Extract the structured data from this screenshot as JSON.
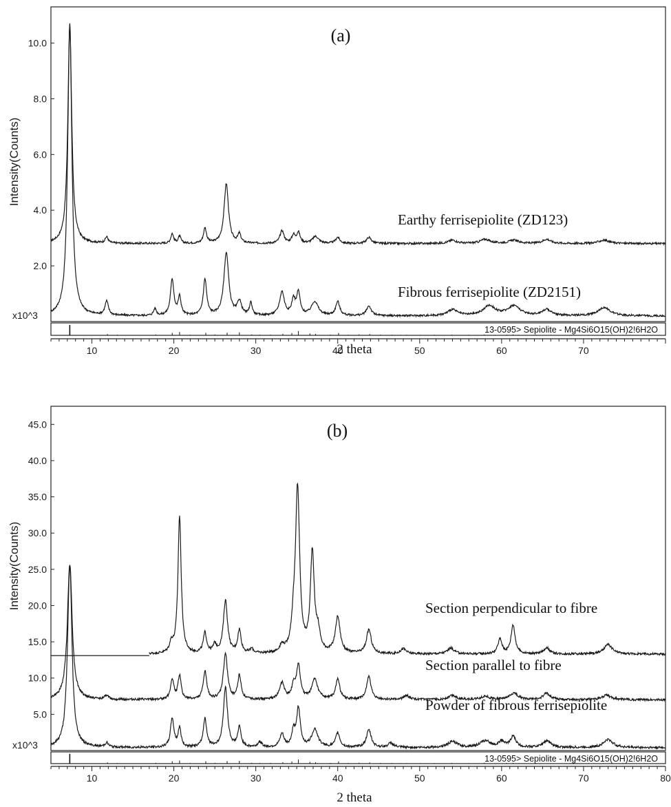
{
  "chart_data": [
    {
      "type": "line",
      "panel_label": "(a)",
      "ylabel": "Intensity(Counts)",
      "scale_label": "x10^3",
      "xlabel": "2 theta",
      "xlim": [
        5,
        80
      ],
      "ylim": [
        0,
        11
      ],
      "yticks": [
        "2.0",
        "4.0",
        "6.0",
        "8.0",
        "10.0"
      ],
      "xticks": [
        "10",
        "20",
        "30",
        "40",
        "50",
        "60",
        "70"
      ],
      "series": [
        {
          "name": "Earthy ferrisepiolite (ZD123)",
          "baseline": 2.8,
          "peaks": [
            [
              7.3,
              7.9,
              0.28
            ],
            [
              11.8,
              0.22,
              0.22
            ],
            [
              19.8,
              0.35,
              0.2
            ],
            [
              20.7,
              0.25,
              0.2
            ],
            [
              23.8,
              0.55,
              0.22
            ],
            [
              26.4,
              2.15,
              0.32
            ],
            [
              28.0,
              0.32,
              0.22
            ],
            [
              33.2,
              0.45,
              0.3
            ],
            [
              34.6,
              0.28,
              0.25
            ],
            [
              35.2,
              0.38,
              0.25
            ],
            [
              37.3,
              0.25,
              0.45
            ],
            [
              40.0,
              0.22,
              0.3
            ],
            [
              43.8,
              0.22,
              0.35
            ],
            [
              54.0,
              0.12,
              0.6
            ],
            [
              58.0,
              0.15,
              0.7
            ],
            [
              61.5,
              0.12,
              0.7
            ],
            [
              65.5,
              0.15,
              0.6
            ],
            [
              72.5,
              0.12,
              0.8
            ]
          ]
        },
        {
          "name": "Fibrous ferrisepiolite (ZD2151)",
          "baseline": 0.2,
          "peaks": [
            [
              7.3,
              10.5,
              0.3
            ],
            [
              11.8,
              0.5,
              0.25
            ],
            [
              17.7,
              0.25,
              0.2
            ],
            [
              19.8,
              1.3,
              0.25
            ],
            [
              20.7,
              0.65,
              0.22
            ],
            [
              23.8,
              1.3,
              0.25
            ],
            [
              26.4,
              2.25,
              0.35
            ],
            [
              28.0,
              0.5,
              0.3
            ],
            [
              29.4,
              0.45,
              0.2
            ],
            [
              33.2,
              0.85,
              0.35
            ],
            [
              34.6,
              0.55,
              0.25
            ],
            [
              35.2,
              0.8,
              0.25
            ],
            [
              37.2,
              0.5,
              0.5
            ],
            [
              40.0,
              0.5,
              0.3
            ],
            [
              43.8,
              0.35,
              0.35
            ],
            [
              54.0,
              0.22,
              0.7
            ],
            [
              58.5,
              0.35,
              0.9
            ],
            [
              61.5,
              0.35,
              0.9
            ],
            [
              65.5,
              0.22,
              0.7
            ],
            [
              72.5,
              0.3,
              0.9
            ]
          ]
        }
      ],
      "reference": {
        "label": "13-0595> Sepiolite - Mg4Si6O15(OH)2!6H2O",
        "lines": [
          [
            7.3,
            1.0
          ],
          [
            11.9,
            0.12
          ],
          [
            13.1,
            0.06
          ],
          [
            17.8,
            0.08
          ],
          [
            19.8,
            0.24
          ],
          [
            20.7,
            0.32
          ],
          [
            22.0,
            0.06
          ],
          [
            23.9,
            0.24
          ],
          [
            25.0,
            0.08
          ],
          [
            26.5,
            0.26
          ],
          [
            28.0,
            0.28
          ],
          [
            29.5,
            0.08
          ],
          [
            30.5,
            0.06
          ],
          [
            31.8,
            0.07
          ],
          [
            33.3,
            0.14
          ],
          [
            34.4,
            0.22
          ],
          [
            35.2,
            0.42
          ],
          [
            36.6,
            0.18
          ],
          [
            37.3,
            0.14
          ],
          [
            39.1,
            0.07
          ],
          [
            40.1,
            0.22
          ],
          [
            41.3,
            0.06
          ],
          [
            42.6,
            0.09
          ],
          [
            43.9,
            0.12
          ],
          [
            45.2,
            0.06
          ],
          [
            46.6,
            0.06
          ],
          [
            47.7,
            0.05
          ],
          [
            48.4,
            0.05
          ],
          [
            50.1,
            0.05
          ],
          [
            51.8,
            0.05
          ],
          [
            53.9,
            0.07
          ],
          [
            56.0,
            0.05
          ],
          [
            57.9,
            0.08
          ],
          [
            59.2,
            0.05
          ],
          [
            60.6,
            0.07
          ],
          [
            61.4,
            0.08
          ],
          [
            62.1,
            0.05
          ],
          [
            64.2,
            0.05
          ],
          [
            66.0,
            0.05
          ],
          [
            68.4,
            0.05
          ],
          [
            70.6,
            0.05
          ],
          [
            72.4,
            0.05
          ],
          [
            74.8,
            0.05
          ],
          [
            77.4,
            0.05
          ]
        ]
      }
    },
    {
      "type": "line",
      "panel_label": "(b)",
      "ylabel": "Intensity(Counts)",
      "scale_label": "x10^3",
      "xlabel": "2 theta",
      "xlim": [
        5,
        80
      ],
      "ylim": [
        0,
        47
      ],
      "yticks": [
        "5.0",
        "10.0",
        "15.0",
        "20.0",
        "25.0",
        "30.0",
        "35.0",
        "40.0",
        "45.0"
      ],
      "xticks": [
        "10",
        "20",
        "30",
        "40",
        "50",
        "60",
        "70",
        "80"
      ],
      "series": [
        {
          "name": "Section perpendicular to fibre",
          "baseline": 13.3,
          "start_x": 17,
          "peaks": [
            [
              19.7,
              1.3,
              0.25
            ],
            [
              20.7,
              19.0,
              0.24
            ],
            [
              23.8,
              2.8,
              0.25
            ],
            [
              25.0,
              1.1,
              0.25
            ],
            [
              26.3,
              7.3,
              0.3
            ],
            [
              28.0,
              3.2,
              0.25
            ],
            [
              29.5,
              0.6,
              0.25
            ],
            [
              33.2,
              0.9,
              0.3
            ],
            [
              34.6,
              3.0,
              0.3
            ],
            [
              35.1,
              22.5,
              0.3
            ],
            [
              36.9,
              13.8,
              0.28
            ],
            [
              37.6,
              2.5,
              0.3
            ],
            [
              40.0,
              5.0,
              0.35
            ],
            [
              43.8,
              3.3,
              0.35
            ],
            [
              48.0,
              0.7,
              0.4
            ],
            [
              53.8,
              0.8,
              0.5
            ],
            [
              59.8,
              2.0,
              0.3
            ],
            [
              61.4,
              4.0,
              0.3
            ],
            [
              65.5,
              0.9,
              0.4
            ],
            [
              73.0,
              1.3,
              0.6
            ]
          ],
          "flat_segment": [
            5,
            17,
            13.1
          ]
        },
        {
          "name": "Section parallel to fibre",
          "baseline": 7.0,
          "peaks": [
            [
              7.3,
              18.8,
              0.35
            ],
            [
              11.8,
              0.6,
              0.25
            ],
            [
              19.8,
              2.7,
              0.25
            ],
            [
              20.7,
              3.3,
              0.22
            ],
            [
              23.8,
              3.9,
              0.25
            ],
            [
              26.3,
              6.3,
              0.3
            ],
            [
              28.0,
              3.3,
              0.25
            ],
            [
              33.2,
              2.3,
              0.35
            ],
            [
              34.6,
              1.8,
              0.25
            ],
            [
              35.2,
              4.6,
              0.28
            ],
            [
              37.2,
              2.7,
              0.45
            ],
            [
              40.0,
              2.8,
              0.3
            ],
            [
              43.8,
              3.3,
              0.3
            ],
            [
              48.4,
              0.6,
              0.4
            ],
            [
              54.0,
              0.6,
              0.6
            ],
            [
              58.0,
              0.5,
              0.6
            ],
            [
              61.5,
              0.9,
              0.6
            ],
            [
              65.5,
              0.9,
              0.5
            ],
            [
              72.8,
              0.6,
              0.7
            ]
          ]
        },
        {
          "name": "Powder of fibrous ferrisepiolite",
          "baseline": 0.4,
          "peaks": [
            [
              7.3,
              25.3,
              0.32
            ],
            [
              11.8,
              0.6,
              0.25
            ],
            [
              19.8,
              4.0,
              0.25
            ],
            [
              20.7,
              2.6,
              0.22
            ],
            [
              23.8,
              4.0,
              0.25
            ],
            [
              26.3,
              8.2,
              0.3
            ],
            [
              28.0,
              2.7,
              0.25
            ],
            [
              30.5,
              0.7,
              0.3
            ],
            [
              33.2,
              1.8,
              0.3
            ],
            [
              34.6,
              2.0,
              0.25
            ],
            [
              35.2,
              5.2,
              0.28
            ],
            [
              37.2,
              2.5,
              0.45
            ],
            [
              40.0,
              2.0,
              0.3
            ],
            [
              43.8,
              2.4,
              0.35
            ],
            [
              46.5,
              0.6,
              0.4
            ],
            [
              54.0,
              0.8,
              0.7
            ],
            [
              58.0,
              0.9,
              0.8
            ],
            [
              60.0,
              0.8,
              0.4
            ],
            [
              61.4,
              1.5,
              0.4
            ],
            [
              65.5,
              0.9,
              0.6
            ],
            [
              73.0,
              1.1,
              0.7
            ]
          ]
        }
      ],
      "reference": {
        "label": "13-0595> Sepiolite - Mg4Si6O15(OH)2!6H2O",
        "lines": [
          [
            7.3,
            1.0
          ],
          [
            11.9,
            0.12
          ],
          [
            13.1,
            0.06
          ],
          [
            17.8,
            0.08
          ],
          [
            19.8,
            0.24
          ],
          [
            20.7,
            0.32
          ],
          [
            22.0,
            0.06
          ],
          [
            23.9,
            0.24
          ],
          [
            25.0,
            0.08
          ],
          [
            26.5,
            0.26
          ],
          [
            28.0,
            0.28
          ],
          [
            29.5,
            0.08
          ],
          [
            30.5,
            0.06
          ],
          [
            31.8,
            0.07
          ],
          [
            33.3,
            0.14
          ],
          [
            34.4,
            0.22
          ],
          [
            35.2,
            0.42
          ],
          [
            36.6,
            0.18
          ],
          [
            37.3,
            0.14
          ],
          [
            39.1,
            0.07
          ],
          [
            40.1,
            0.22
          ],
          [
            41.3,
            0.06
          ],
          [
            42.6,
            0.09
          ],
          [
            43.9,
            0.12
          ],
          [
            45.2,
            0.06
          ],
          [
            46.6,
            0.06
          ],
          [
            47.7,
            0.05
          ],
          [
            48.4,
            0.05
          ],
          [
            50.1,
            0.05
          ],
          [
            51.8,
            0.05
          ],
          [
            53.9,
            0.07
          ],
          [
            56.0,
            0.05
          ],
          [
            57.9,
            0.08
          ],
          [
            59.2,
            0.05
          ],
          [
            60.6,
            0.07
          ],
          [
            61.4,
            0.08
          ],
          [
            62.1,
            0.05
          ],
          [
            64.2,
            0.05
          ],
          [
            66.0,
            0.05
          ],
          [
            68.4,
            0.05
          ],
          [
            70.6,
            0.05
          ],
          [
            72.4,
            0.05
          ],
          [
            74.8,
            0.05
          ],
          [
            77.4,
            0.05
          ]
        ]
      }
    }
  ]
}
